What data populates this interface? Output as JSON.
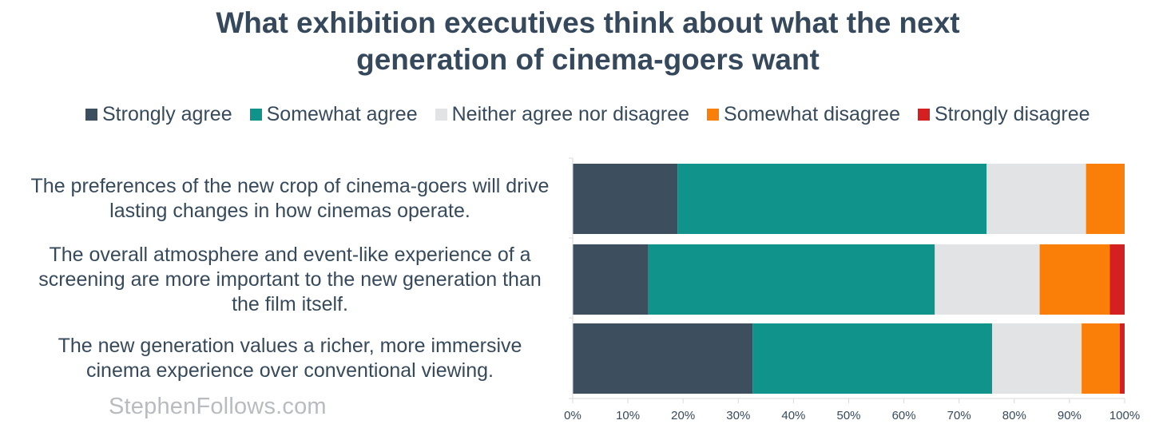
{
  "chart_data": {
    "type": "bar",
    "orientation": "horizontal",
    "stacked": "percent",
    "title_lines": [
      "What exhibition executives think about what the next",
      "generation of cinema-goers want"
    ],
    "categories": [
      [
        "The preferences of the new crop of cinema-goers will drive",
        "lasting changes in how cinemas operate."
      ],
      [
        "The overall atmosphere and event-like experience of a",
        "screening are more important to the new generation than",
        "the film itself."
      ],
      [
        "The new generation values a richer, more immersive",
        "cinema experience over conventional viewing."
      ]
    ],
    "series": [
      {
        "name": "Strongly agree",
        "color": "#3d4f5e",
        "values": [
          19,
          13.7,
          32.6
        ]
      },
      {
        "name": "Somewhat agree",
        "color": "#10938b",
        "values": [
          56,
          51.9,
          43.4
        ]
      },
      {
        "name": "Neither agree nor disagree",
        "color": "#e2e3e4",
        "values": [
          18,
          19,
          16.2
        ]
      },
      {
        "name": "Somewhat disagree",
        "color": "#fa7f08",
        "values": [
          7,
          12.7,
          6.9
        ]
      },
      {
        "name": "Strongly disagree",
        "color": "#d42020",
        "values": [
          0,
          2.7,
          0.9
        ]
      }
    ],
    "xlim": [
      0,
      100
    ],
    "ticks": [
      "0%",
      "10%",
      "20%",
      "30%",
      "40%",
      "50%",
      "60%",
      "70%",
      "80%",
      "90%",
      "100%"
    ],
    "xlabel": "",
    "ylabel": "",
    "legend_position": "top",
    "grid": false
  },
  "watermark": "StephenFollows.com"
}
